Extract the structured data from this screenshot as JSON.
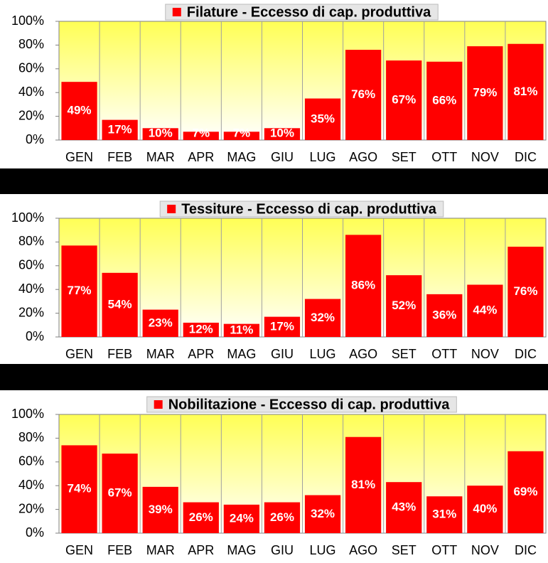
{
  "chart_data": [
    {
      "type": "bar",
      "categories": [
        "GEN",
        "FEB",
        "MAR",
        "APR",
        "MAG",
        "GIU",
        "LUG",
        "AGO",
        "SET",
        "OTT",
        "NOV",
        "DIC"
      ],
      "series": [
        {
          "name": "Filature - Eccesso di cap. produttiva",
          "color": "#ff0000",
          "values": [
            49,
            17,
            10,
            7,
            7,
            10,
            35,
            76,
            67,
            66,
            79,
            81
          ],
          "value_labels": [
            "49%",
            "17%",
            "10%",
            "7%",
            "7%",
            "10%",
            "35%",
            "76%",
            "67%",
            "66%",
            "79%",
            "81%"
          ]
        }
      ],
      "ylim": [
        0,
        100
      ],
      "yticks": [
        {
          "value": 0,
          "label": "0%"
        },
        {
          "value": 20,
          "label": "20%"
        },
        {
          "value": 40,
          "label": "40%"
        },
        {
          "value": 60,
          "label": "60%"
        },
        {
          "value": 80,
          "label": "80%"
        },
        {
          "value": 100,
          "label": "100%"
        }
      ]
    },
    {
      "type": "bar",
      "categories": [
        "GEN",
        "FEB",
        "MAR",
        "APR",
        "MAG",
        "GIU",
        "LUG",
        "AGO",
        "SET",
        "OTT",
        "NOV",
        "DIC"
      ],
      "series": [
        {
          "name": "Tessiture - Eccesso di cap. produttiva",
          "color": "#ff0000",
          "values": [
            77,
            54,
            23,
            12,
            11,
            17,
            32,
            86,
            52,
            36,
            44,
            76
          ],
          "value_labels": [
            "77%",
            "54%",
            "23%",
            "12%",
            "11%",
            "17%",
            "32%",
            "86%",
            "52%",
            "36%",
            "44%",
            "76%"
          ]
        }
      ],
      "ylim": [
        0,
        100
      ],
      "yticks": [
        {
          "value": 0,
          "label": "0%"
        },
        {
          "value": 20,
          "label": "20%"
        },
        {
          "value": 40,
          "label": "40%"
        },
        {
          "value": 60,
          "label": "60%"
        },
        {
          "value": 80,
          "label": "80%"
        },
        {
          "value": 100,
          "label": "100%"
        }
      ]
    },
    {
      "type": "bar",
      "categories": [
        "GEN",
        "FEB",
        "MAR",
        "APR",
        "MAG",
        "GIU",
        "LUG",
        "AGO",
        "SET",
        "OTT",
        "NOV",
        "DIC"
      ],
      "series": [
        {
          "name": "Nobilitazione - Eccesso di cap. produttiva",
          "color": "#ff0000",
          "values": [
            74,
            67,
            39,
            26,
            24,
            26,
            32,
            81,
            43,
            31,
            40,
            69
          ],
          "value_labels": [
            "74%",
            "67%",
            "39%",
            "26%",
            "24%",
            "26%",
            "32%",
            "81%",
            "43%",
            "31%",
            "40%",
            "69%"
          ]
        }
      ],
      "ylim": [
        0,
        100
      ],
      "yticks": [
        {
          "value": 0,
          "label": "0%"
        },
        {
          "value": 20,
          "label": "20%"
        },
        {
          "value": 40,
          "label": "40%"
        },
        {
          "value": 60,
          "label": "60%"
        },
        {
          "value": 80,
          "label": "80%"
        },
        {
          "value": 100,
          "label": "100%"
        }
      ]
    }
  ]
}
